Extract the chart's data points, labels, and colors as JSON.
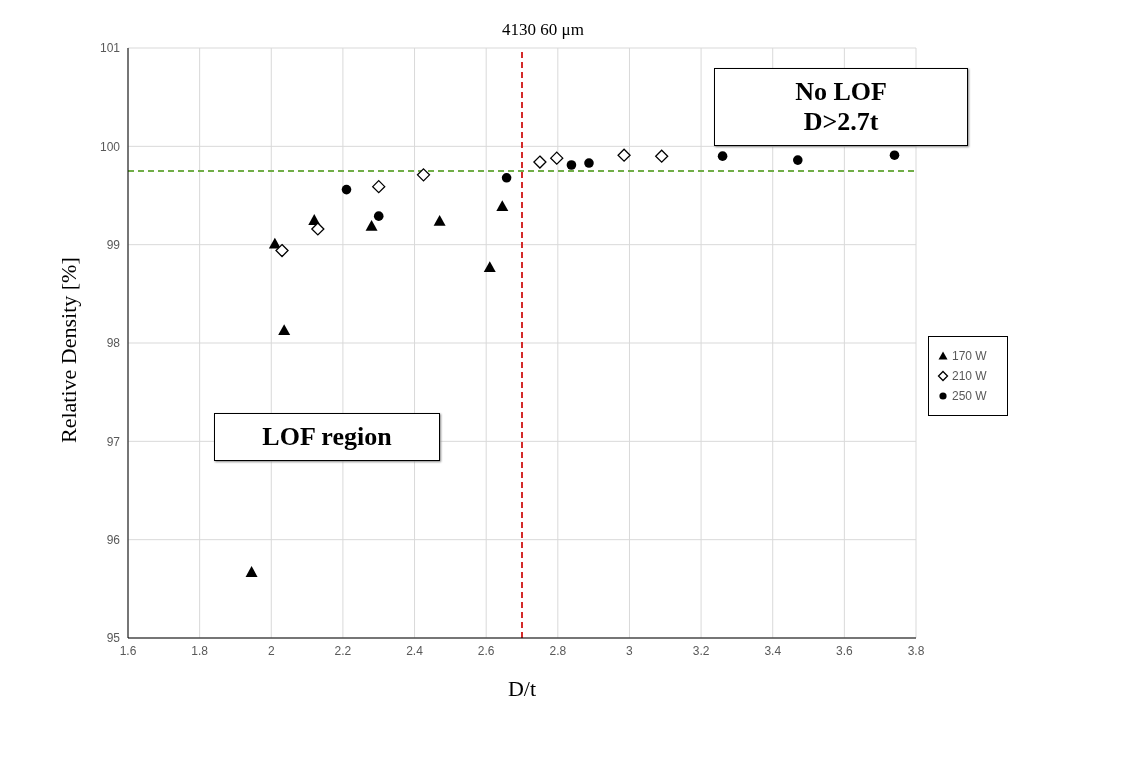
{
  "chart_data": {
    "type": "scatter",
    "title": "4130 60 μm",
    "xlabel": "D/t",
    "ylabel": "Relative Density [%]",
    "xlim": [
      1.6,
      3.8
    ],
    "xticks": [
      1.6,
      1.8,
      2,
      2.2,
      2.4,
      2.6,
      2.8,
      3,
      3.2,
      3.4,
      3.6,
      3.8
    ],
    "ylim": [
      95,
      101
    ],
    "yticks": [
      95,
      96,
      97,
      98,
      99,
      100,
      101
    ],
    "grid": true,
    "legend": "right",
    "series": [
      {
        "name": "170 W",
        "color": "#000000",
        "marker": "triangle",
        "x": [
          1.945,
          2.01,
          2.036,
          2.12,
          2.28,
          2.47,
          2.61,
          2.645
        ],
        "values": [
          95.67,
          99.01,
          98.13,
          99.25,
          99.19,
          99.24,
          98.77,
          99.39
        ]
      },
      {
        "name": "210 W",
        "color": "#000000",
        "marker": "diamond",
        "x": [
          2.03,
          2.13,
          2.3,
          2.425,
          2.75,
          2.797,
          2.985,
          3.09
        ],
        "values": [
          98.94,
          99.16,
          99.59,
          99.71,
          99.84,
          99.88,
          99.91,
          99.9
        ]
      },
      {
        "name": "250 W",
        "color": "#000000",
        "marker": "circle",
        "x": [
          2.21,
          2.3,
          2.657,
          2.838,
          2.887,
          3.26,
          3.47,
          3.74
        ],
        "values": [
          99.56,
          99.29,
          99.68,
          99.81,
          99.83,
          99.9,
          99.86,
          99.91
        ]
      }
    ],
    "ref_lines": [
      {
        "axis": "x",
        "value": 2.7,
        "color": "#d42a2a",
        "line_style": "dashed"
      },
      {
        "axis": "y",
        "value": 99.75,
        "color": "#70ad47",
        "line_style": "dashed"
      }
    ],
    "annotations": [
      "No LOF\nD>2.7t",
      "LOF region"
    ]
  }
}
